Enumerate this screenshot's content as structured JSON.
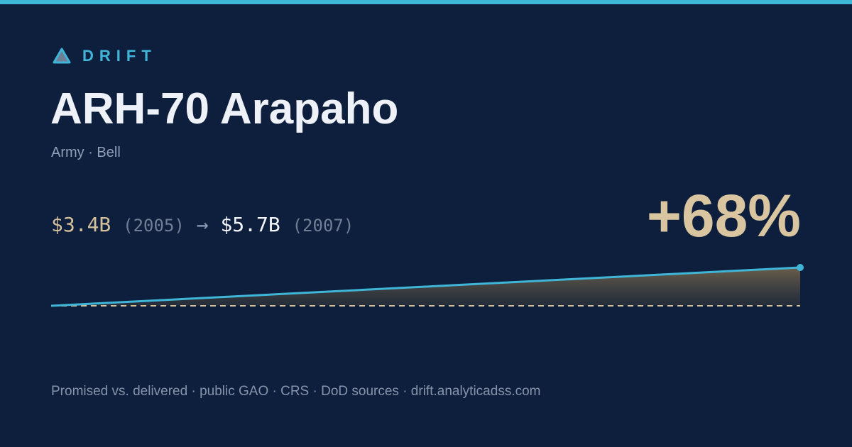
{
  "brand": "DRIFT",
  "title": "ARH-70 Arapaho",
  "subtitle": "Army · Bell",
  "from": {
    "value": "$3.4B",
    "year": "(2005)"
  },
  "arrow": "→",
  "to": {
    "value": "$5.7B",
    "year": "(2007)"
  },
  "change": "+68%",
  "sparkline": {
    "x": [
      2005,
      2007
    ],
    "values": [
      3.4,
      5.7
    ]
  },
  "footer": "Promised vs. delivered · public GAO · CRS · DoD sources · drift.analyticadss.com"
}
